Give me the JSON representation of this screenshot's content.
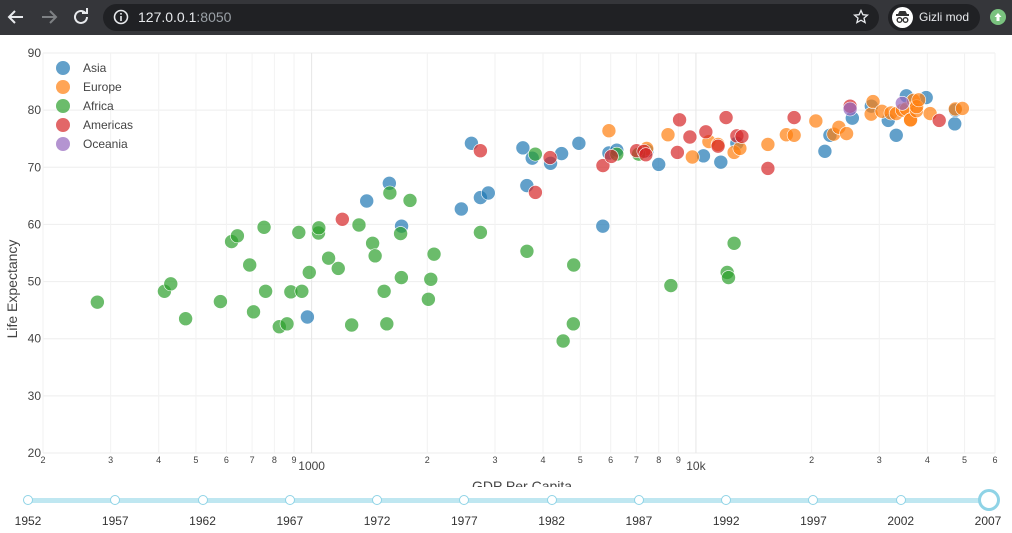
{
  "browser": {
    "url_host": "127.0.0.1",
    "url_port": ":8050",
    "incognito_label": "Gizli mod",
    "icons": [
      "back-arrow-icon",
      "forward-arrow-icon",
      "reload-icon",
      "info-icon",
      "star-icon",
      "incognito-icon",
      "extension-icon"
    ]
  },
  "chart_data": {
    "type": "scatter",
    "xlabel": "GDP Per Capita",
    "ylabel": "Life Expectancy",
    "xscale": "log",
    "xlim": [
      200,
      60000
    ],
    "ylim": [
      20,
      90
    ],
    "yticks": [
      20,
      30,
      40,
      50,
      60,
      70,
      80,
      90
    ],
    "xtick_labels": [
      {
        "v": 200,
        "t": "2"
      },
      {
        "v": 300,
        "t": "3"
      },
      {
        "v": 400,
        "t": "4"
      },
      {
        "v": 500,
        "t": "5"
      },
      {
        "v": 600,
        "t": "6"
      },
      {
        "v": 700,
        "t": "7"
      },
      {
        "v": 800,
        "t": "8"
      },
      {
        "v": 900,
        "t": "9"
      },
      {
        "v": 1000,
        "t": "1000"
      },
      {
        "v": 2000,
        "t": "2"
      },
      {
        "v": 3000,
        "t": "3"
      },
      {
        "v": 4000,
        "t": "4"
      },
      {
        "v": 5000,
        "t": "5"
      },
      {
        "v": 6000,
        "t": "6"
      },
      {
        "v": 7000,
        "t": "7"
      },
      {
        "v": 8000,
        "t": "8"
      },
      {
        "v": 9000,
        "t": "9"
      },
      {
        "v": 10000,
        "t": "10k"
      },
      {
        "v": 20000,
        "t": "2"
      },
      {
        "v": 30000,
        "t": "3"
      },
      {
        "v": 40000,
        "t": "4"
      },
      {
        "v": 50000,
        "t": "5"
      },
      {
        "v": 60000,
        "t": "6"
      }
    ],
    "grid": true,
    "legend_position": "top-left",
    "series": [
      {
        "name": "Asia",
        "color": "#1f77b4",
        "points": [
          [
            975,
            43.8
          ],
          [
            1391,
            64.1
          ],
          [
            1593,
            67.2
          ],
          [
            1714,
            59.7
          ],
          [
            2605,
            74.2
          ],
          [
            2452,
            62.7
          ],
          [
            2749,
            64.7
          ],
          [
            2882,
            65.5
          ],
          [
            3546,
            73.4
          ],
          [
            3631,
            66.8
          ],
          [
            3750,
            71.6
          ],
          [
            4185,
            70.7
          ],
          [
            4471,
            72.4
          ],
          [
            4959,
            74.2
          ],
          [
            5723,
            59.7
          ],
          [
            5937,
            72.5
          ],
          [
            6223,
            73
          ],
          [
            7458,
            72.9
          ],
          [
            8000,
            70.5
          ],
          [
            10461,
            72
          ],
          [
            11606,
            70.9
          ],
          [
            12779,
            74.2
          ],
          [
            21655,
            72.8
          ],
          [
            22316,
            75.6
          ],
          [
            25523,
            78.6
          ],
          [
            28604,
            80.7
          ],
          [
            31656,
            78.2
          ],
          [
            33203,
            75.6
          ],
          [
            35278,
            82.5
          ],
          [
            39725,
            82.2
          ],
          [
            47143,
            77.6
          ],
          [
            47307,
            80
          ]
        ]
      },
      {
        "name": "Europe",
        "color": "#ff7f0e",
        "points": [
          [
            5937,
            76.4
          ],
          [
            7446,
            73.3
          ],
          [
            8458,
            75.7
          ],
          [
            9787,
            71.8
          ],
          [
            10808,
            74.5
          ],
          [
            11416,
            74
          ],
          [
            12570,
            72.6
          ],
          [
            13012,
            73.3
          ],
          [
            15390,
            74
          ],
          [
            17191,
            75.7
          ],
          [
            18009,
            75.6
          ],
          [
            20510,
            78.1
          ],
          [
            22834,
            75.8
          ],
          [
            23546,
            77
          ],
          [
            24655,
            75.9
          ],
          [
            28570,
            79.3
          ],
          [
            28893,
            81.5
          ],
          [
            30470,
            79.8
          ],
          [
            32170,
            79.5
          ],
          [
            33207,
            79.4
          ],
          [
            34436,
            80
          ],
          [
            35278,
            80.2
          ],
          [
            36126,
            78.3
          ],
          [
            36181,
            78.3
          ],
          [
            36798,
            81.7
          ],
          [
            37477,
            79.9
          ],
          [
            37507,
            80.6
          ],
          [
            38000,
            81.8
          ],
          [
            40676,
            79.4
          ],
          [
            47307,
            80.2
          ],
          [
            49357,
            80.3
          ]
        ]
      },
      {
        "name": "Africa",
        "color": "#2ca02c",
        "points": [
          [
            277,
            46.4
          ],
          [
            414,
            48.3
          ],
          [
            430,
            49.6
          ],
          [
            470,
            43.5
          ],
          [
            579,
            46.5
          ],
          [
            619,
            57
          ],
          [
            641,
            58
          ],
          [
            690,
            52.9
          ],
          [
            706,
            44.7
          ],
          [
            752,
            59.5
          ],
          [
            759,
            48.3
          ],
          [
            824,
            42.1
          ],
          [
            863,
            42.6
          ],
          [
            883,
            48.2
          ],
          [
            926,
            58.6
          ],
          [
            943,
            48.3
          ],
          [
            986,
            51.6
          ],
          [
            1042,
            58.5
          ],
          [
            1044,
            59.4
          ],
          [
            1107,
            54.1
          ],
          [
            1173,
            52.3
          ],
          [
            1271,
            42.4
          ],
          [
            1328,
            59.9
          ],
          [
            1441,
            56.7
          ],
          [
            1463,
            54.5
          ],
          [
            1544,
            48.3
          ],
          [
            1569,
            42.6
          ],
          [
            1598,
            65.5
          ],
          [
            1704,
            58.4
          ],
          [
            1712,
            50.7
          ],
          [
            1803,
            64.2
          ],
          [
            2013,
            46.9
          ],
          [
            2042,
            50.4
          ],
          [
            2082,
            54.8
          ],
          [
            2749,
            58.6
          ],
          [
            3633,
            55.3
          ],
          [
            3820,
            72.3
          ],
          [
            4513,
            39.6
          ],
          [
            4797,
            42.6
          ],
          [
            4808,
            52.9
          ],
          [
            6223,
            72.3
          ],
          [
            7093,
            72.3
          ],
          [
            8606,
            49.3
          ],
          [
            12057,
            51.6
          ],
          [
            12154,
            50.7
          ],
          [
            12570,
            56.7
          ]
        ]
      },
      {
        "name": "Americas",
        "color": "#d62728",
        "points": [
          [
            1202,
            60.9
          ],
          [
            2749,
            72.9
          ],
          [
            3822,
            65.6
          ],
          [
            4173,
            71.7
          ],
          [
            5728,
            70.3
          ],
          [
            6025,
            71.9
          ],
          [
            7006,
            72.9
          ],
          [
            7321,
            72.8
          ],
          [
            7408,
            72.2
          ],
          [
            8948,
            72.6
          ],
          [
            9065,
            78.3
          ],
          [
            9645,
            75.3
          ],
          [
            10611,
            76.2
          ],
          [
            11416,
            73.7
          ],
          [
            11978,
            78.7
          ],
          [
            12779,
            75.5
          ],
          [
            13172,
            75.4
          ],
          [
            15390,
            69.8
          ],
          [
            18009,
            78.7
          ],
          [
            25185,
            80.7
          ],
          [
            42952,
            78.2
          ]
        ]
      },
      {
        "name": "Oceania",
        "color": "#9467bd",
        "points": [
          [
            25185,
            80.2
          ],
          [
            34435,
            81.2
          ]
        ]
      }
    ],
    "slider": {
      "years": [
        "1952",
        "1957",
        "1962",
        "1967",
        "1972",
        "1977",
        "1982",
        "1987",
        "1992",
        "1997",
        "2002",
        "2007"
      ],
      "selected": "2007"
    }
  }
}
